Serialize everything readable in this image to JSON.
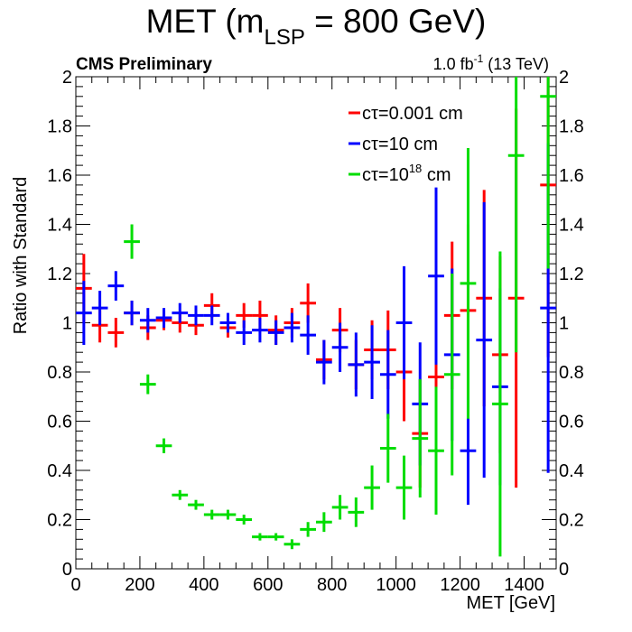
{
  "chart_data": {
    "type": "scatter",
    "title_main": "MET (m",
    "title_sub": "LSP",
    "title_rest": " = 800 GeV)",
    "cms_label": "CMS Preliminary",
    "lumi_value": "1.0 fb",
    "lumi_exp": "-1",
    "lumi_energy": " (13 TeV)",
    "xlabel": "MET [GeV]",
    "ylabel": "Ratio with Standard",
    "xlim": [
      0,
      1500
    ],
    "ylim": [
      0,
      2
    ],
    "bin_width": 50,
    "x_ticks": [
      0,
      200,
      400,
      600,
      800,
      1000,
      1200,
      1400
    ],
    "y_ticks": [
      0,
      0.2,
      0.4,
      0.6,
      0.8,
      1,
      1.2,
      1.4,
      1.6,
      1.8,
      2
    ],
    "y_tick_labels": [
      "0",
      "0.2",
      "0.4",
      "0.6",
      "0.8",
      "1",
      "1.2",
      "1.4",
      "1.6",
      "1.8",
      "2"
    ],
    "series": [
      {
        "name_prefix": "cτ=0.001 cm",
        "name_sup": "",
        "name_suffix": "",
        "color": "#ff0000",
        "points": [
          {
            "x": 25,
            "y": 1.14,
            "err": 0.14
          },
          {
            "x": 75,
            "y": 0.99,
            "err": 0.07
          },
          {
            "x": 125,
            "y": 0.96,
            "err": 0.06
          },
          {
            "x": 175,
            "y": 1.04,
            "err": 0.05
          },
          {
            "x": 225,
            "y": 0.98,
            "err": 0.05
          },
          {
            "x": 275,
            "y": 1.01,
            "err": 0.04
          },
          {
            "x": 325,
            "y": 1.0,
            "err": 0.04
          },
          {
            "x": 375,
            "y": 0.99,
            "err": 0.04
          },
          {
            "x": 425,
            "y": 1.07,
            "err": 0.05
          },
          {
            "x": 475,
            "y": 0.98,
            "err": 0.04
          },
          {
            "x": 525,
            "y": 1.03,
            "err": 0.05
          },
          {
            "x": 575,
            "y": 1.03,
            "err": 0.06
          },
          {
            "x": 625,
            "y": 0.97,
            "err": 0.06
          },
          {
            "x": 675,
            "y": 1.0,
            "err": 0.06
          },
          {
            "x": 725,
            "y": 1.08,
            "err": 0.08
          },
          {
            "x": 775,
            "y": 0.85,
            "err": 0.08
          },
          {
            "x": 825,
            "y": 0.97,
            "err": 0.09
          },
          {
            "x": 875,
            "y": 0.83,
            "err": 0.1
          },
          {
            "x": 925,
            "y": 0.89,
            "err": 0.12
          },
          {
            "x": 975,
            "y": 0.89,
            "err": 0.16
          },
          {
            "x": 1025,
            "y": 0.8,
            "err": 0.2
          },
          {
            "x": 1075,
            "y": 0.55,
            "err": 0.22
          },
          {
            "x": 1125,
            "y": 0.78,
            "err": 0.3
          },
          {
            "x": 1175,
            "y": 1.03,
            "err": 0.3
          },
          {
            "x": 1225,
            "y": 1.05,
            "err": 0.35
          },
          {
            "x": 1275,
            "y": 1.1,
            "err": 0.44
          },
          {
            "x": 1325,
            "y": 0.87,
            "err": 0.4
          },
          {
            "x": 1375,
            "y": 1.1,
            "err": 0.77
          },
          {
            "x": 1475,
            "y": 1.56,
            "err": 0.7
          }
        ]
      },
      {
        "name_prefix": "cτ=10 cm",
        "name_sup": "",
        "name_suffix": "",
        "color": "#0000ff",
        "points": [
          {
            "x": 25,
            "y": 1.04,
            "err": 0.13
          },
          {
            "x": 75,
            "y": 1.06,
            "err": 0.07
          },
          {
            "x": 125,
            "y": 1.15,
            "err": 0.06
          },
          {
            "x": 175,
            "y": 1.04,
            "err": 0.05
          },
          {
            "x": 225,
            "y": 1.01,
            "err": 0.05
          },
          {
            "x": 275,
            "y": 1.02,
            "err": 0.04
          },
          {
            "x": 325,
            "y": 1.04,
            "err": 0.04
          },
          {
            "x": 375,
            "y": 1.03,
            "err": 0.04
          },
          {
            "x": 425,
            "y": 1.03,
            "err": 0.04
          },
          {
            "x": 475,
            "y": 1.0,
            "err": 0.04
          },
          {
            "x": 525,
            "y": 0.96,
            "err": 0.05
          },
          {
            "x": 575,
            "y": 0.97,
            "err": 0.05
          },
          {
            "x": 625,
            "y": 0.96,
            "err": 0.05
          },
          {
            "x": 675,
            "y": 0.98,
            "err": 0.06
          },
          {
            "x": 725,
            "y": 0.95,
            "err": 0.08
          },
          {
            "x": 775,
            "y": 0.84,
            "err": 0.09
          },
          {
            "x": 825,
            "y": 0.9,
            "err": 0.1
          },
          {
            "x": 875,
            "y": 0.83,
            "err": 0.13
          },
          {
            "x": 925,
            "y": 0.84,
            "err": 0.15
          },
          {
            "x": 975,
            "y": 0.79,
            "err": 0.18
          },
          {
            "x": 1025,
            "y": 1.0,
            "err": 0.23
          },
          {
            "x": 1075,
            "y": 0.67,
            "err": 0.25
          },
          {
            "x": 1125,
            "y": 1.19,
            "err": 0.36
          },
          {
            "x": 1175,
            "y": 0.87,
            "err": 0.35
          },
          {
            "x": 1225,
            "y": 0.48,
            "err": 0.22
          },
          {
            "x": 1275,
            "y": 0.93,
            "err": 0.56
          },
          {
            "x": 1325,
            "y": 0.74,
            "err": 0.4
          },
          {
            "x": 1475,
            "y": 1.06,
            "err": 0.67
          }
        ]
      },
      {
        "name_prefix": "cτ=10",
        "name_sup": "18",
        "name_suffix": " cm",
        "color": "#00dd00",
        "points": [
          {
            "x": 175,
            "y": 1.33,
            "err": 0.07
          },
          {
            "x": 225,
            "y": 0.75,
            "err": 0.04
          },
          {
            "x": 275,
            "y": 0.5,
            "err": 0.03
          },
          {
            "x": 325,
            "y": 0.3,
            "err": 0.02
          },
          {
            "x": 375,
            "y": 0.26,
            "err": 0.02
          },
          {
            "x": 425,
            "y": 0.22,
            "err": 0.02
          },
          {
            "x": 475,
            "y": 0.22,
            "err": 0.02
          },
          {
            "x": 525,
            "y": 0.2,
            "err": 0.02
          },
          {
            "x": 575,
            "y": 0.13,
            "err": 0.015
          },
          {
            "x": 625,
            "y": 0.13,
            "err": 0.015
          },
          {
            "x": 675,
            "y": 0.1,
            "err": 0.02
          },
          {
            "x": 725,
            "y": 0.16,
            "err": 0.03
          },
          {
            "x": 775,
            "y": 0.19,
            "err": 0.04
          },
          {
            "x": 825,
            "y": 0.25,
            "err": 0.05
          },
          {
            "x": 875,
            "y": 0.23,
            "err": 0.06
          },
          {
            "x": 925,
            "y": 0.33,
            "err": 0.09
          },
          {
            "x": 975,
            "y": 0.49,
            "err": 0.14
          },
          {
            "x": 1025,
            "y": 0.33,
            "err": 0.13
          },
          {
            "x": 1075,
            "y": 0.53,
            "err": 0.24
          },
          {
            "x": 1125,
            "y": 0.48,
            "err": 0.26
          },
          {
            "x": 1175,
            "y": 0.79,
            "err": 0.41
          },
          {
            "x": 1225,
            "y": 1.16,
            "err": 0.55
          },
          {
            "x": 1325,
            "y": 0.67,
            "err": 0.62
          },
          {
            "x": 1375,
            "y": 1.68,
            "err": 0.8
          },
          {
            "x": 1475,
            "y": 1.92,
            "err": 0.7
          }
        ]
      }
    ]
  }
}
